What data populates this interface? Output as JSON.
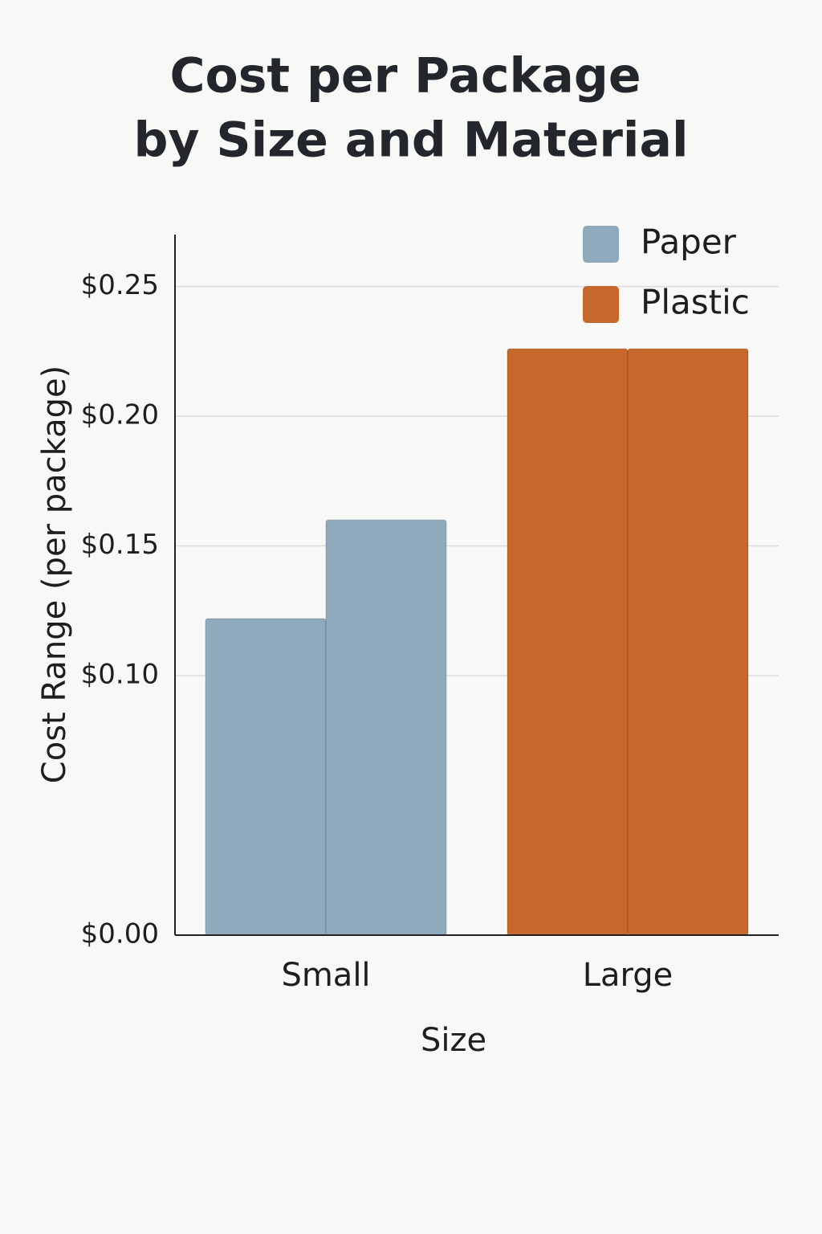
{
  "chart_data": {
    "type": "range-bar",
    "title": [
      "Cost per Package",
      "by Size and Material"
    ],
    "x_label": "Size",
    "y_label": "Cost Range (per package)",
    "categories": [
      "Small",
      "Large"
    ],
    "series": [
      {
        "name": "Paper",
        "color": "#8fa9bd",
        "low": [
          0.122,
          null
        ],
        "high": [
          0.16,
          null
        ]
      },
      {
        "name": "Plastic",
        "color": "#c6682b",
        "low": [
          null,
          0.226
        ],
        "high": [
          null,
          0.226
        ]
      }
    ],
    "ylim": [
      0,
      0.27
    ],
    "yticks": [
      {
        "value": 0,
        "label": "$0.00"
      },
      {
        "value": 0.1,
        "label": "$0.10"
      },
      {
        "value": 0.15,
        "label": "$0.15"
      },
      {
        "value": 0.2,
        "label": "$0.20"
      },
      {
        "value": 0.25,
        "label": "$0.25"
      }
    ],
    "grid": true,
    "legend": "top-right"
  }
}
